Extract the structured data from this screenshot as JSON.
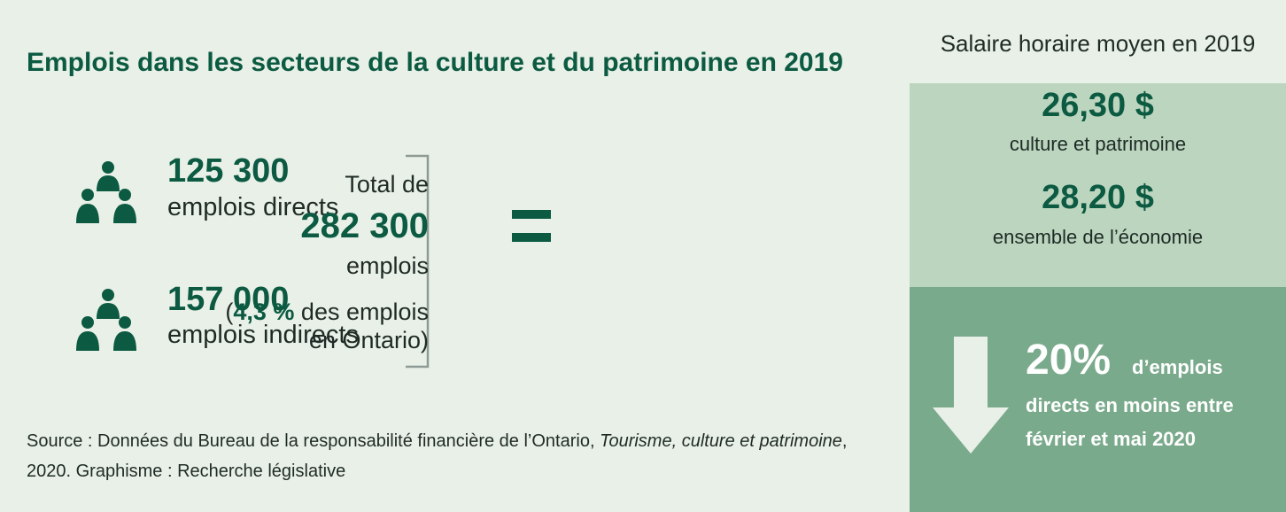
{
  "title": "Emplois dans les secteurs de la culture et du patrimoine en 2019",
  "direct": {
    "value": "125 300",
    "label": "emplois directs"
  },
  "indirect": {
    "value": "157 000",
    "label": "emplois indirects"
  },
  "total": {
    "prefix": "Total de",
    "value": "282 300",
    "unit": "emplois",
    "share_open": "(",
    "share_value": "4,3 %",
    "share_rest": " des emplois",
    "share_line2": "en Ontario)"
  },
  "source": {
    "part1": "Source : Données du Bureau de la responsabilité financière de l’Ontario, ",
    "publication": "Tourisme, culture et patrimoine",
    "part2": ", 2020.  Graphisme : Recherche législative"
  },
  "wage": {
    "title": "Salaire horaire moyen en 2019",
    "culture_value": "26,30 $",
    "culture_label": "culture et patrimoine",
    "economy_value": "28,20 $",
    "economy_label": "ensemble de l’économie"
  },
  "drop": {
    "percent": "20%",
    "line1": "d’emplois",
    "line2": "directs en moins entre",
    "line3": "février et mai 2020"
  },
  "colors": {
    "accent": "#0b5a41",
    "background": "#e9f0e8",
    "wage_panel": "#bcd5bf",
    "drop_panel": "#7aaa8c",
    "arrow": "#e9f0e8"
  },
  "icons": [
    "people-group-icon",
    "equals-icon",
    "bracket",
    "down-arrow-icon"
  ]
}
